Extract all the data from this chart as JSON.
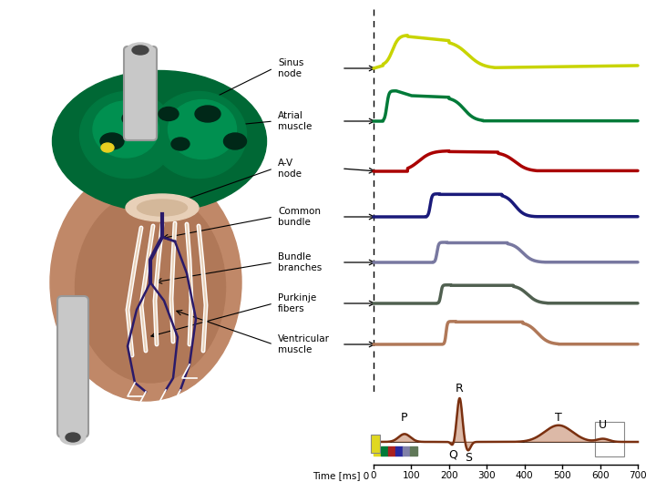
{
  "labels": [
    "Sinus\nnode",
    "Atrial\nmuscle",
    "A-V\nnode",
    "Common\nbundle",
    "Bundle\nbranches",
    "Purkinje\nfibers",
    "Ventricular\nmuscle"
  ],
  "colors": [
    "#c8d400",
    "#007a38",
    "#aa0000",
    "#1a1a7a",
    "#7878a0",
    "#506050",
    "#b07858"
  ],
  "background": "#ffffff",
  "time_axis": [
    0,
    100,
    200,
    300,
    400,
    500,
    600,
    700
  ],
  "xlabel": "Time [ms]"
}
